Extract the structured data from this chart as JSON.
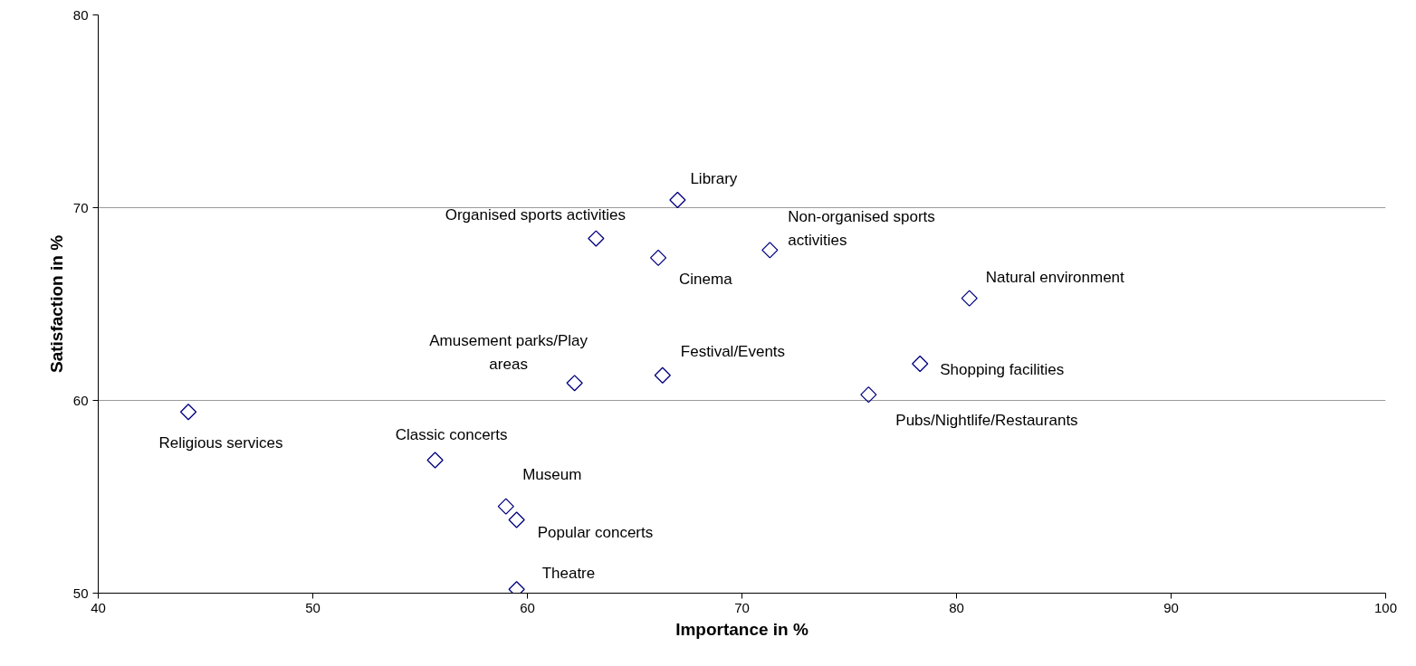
{
  "chart_data": {
    "type": "scatter",
    "xlabel": "Importance in %",
    "ylabel": "Satisfaction in %",
    "x": [
      67.0,
      63.2,
      66.1,
      71.3,
      80.6,
      62.2,
      66.3,
      78.3,
      75.9,
      44.2,
      55.7,
      59.0,
      59.5,
      59.5
    ],
    "values": [
      70.4,
      68.4,
      67.4,
      67.8,
      65.3,
      60.9,
      61.3,
      61.9,
      60.3,
      59.4,
      56.9,
      54.5,
      53.8,
      50.2
    ],
    "value_labels": [
      "Library",
      "Organised sports activities",
      "Cinema",
      "Non-organised sports\nactivities",
      "Natural environment",
      "Amusement parks/Play\nareas",
      "Festival/Events",
      "Shopping facilities",
      "Pubs/Nightlife/Restaurants",
      "Religious services",
      "Classic concerts",
      "Museum",
      "Popular concerts",
      "Theatre"
    ],
    "color": "#000080",
    "marker": "diamond",
    "grid": "y",
    "xlim": [
      40,
      100
    ],
    "xticks": [
      40,
      50,
      60,
      70,
      80,
      90,
      100
    ],
    "ylim": [
      50,
      80
    ],
    "yticks": [
      50,
      60,
      70,
      80
    ]
  }
}
